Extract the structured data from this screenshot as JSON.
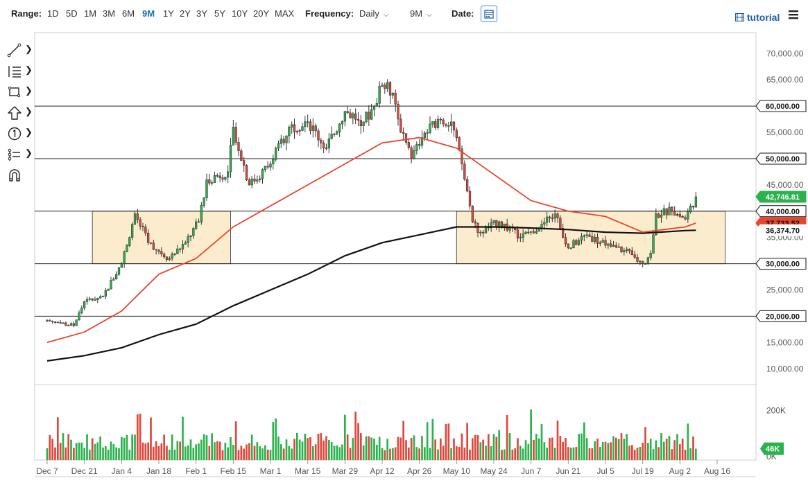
{
  "toolbar": {
    "range_label": "Range:",
    "ranges": [
      "1D",
      "5D",
      "1M",
      "3M",
      "6M",
      "9M",
      "1Y",
      "2Y",
      "3Y",
      "5Y",
      "10Y",
      "20Y",
      "MAX"
    ],
    "active_range": "9M",
    "frequency_label": "Frequency:",
    "frequency_value": "Daily",
    "period_value": "9M",
    "date_label": "Date:",
    "tutorial_label": "tutorial"
  },
  "drawing_tools": [
    {
      "icon": "trendline-icon"
    },
    {
      "icon": "fibonacci-icon"
    },
    {
      "icon": "rectangle-icon"
    },
    {
      "icon": "arrow-up-icon"
    },
    {
      "icon": "annotation-icon"
    },
    {
      "icon": "measure-icon"
    },
    {
      "icon": "magnet-icon"
    }
  ],
  "colors": {
    "up": "#2bb24c",
    "down": "#e0463a",
    "ma_fast": "#e8452c",
    "ma_slow": "#111111",
    "zone_fill": "#fbe9c6",
    "zone_border": "#555555",
    "accent": "#1a6fb5"
  },
  "chart_data": {
    "type": "candlestick",
    "y_axis": {
      "min": 7000,
      "max": 74000,
      "ticks": [
        "70,000.00",
        "65,000.00",
        "60,000.00",
        "55,000.00",
        "50,000.00",
        "45,000.00",
        "40,000.00",
        "35,000.00",
        "30,000.00",
        "25,000.00",
        "20,000.00",
        "15,000.00",
        "10,000.00"
      ],
      "tick_values": [
        70000,
        65000,
        60000,
        55000,
        50000,
        45000,
        40000,
        35000,
        30000,
        25000,
        20000,
        15000,
        10000
      ]
    },
    "x_axis": {
      "ticks": [
        "Dec 7",
        "Dec 21",
        "Jan 4",
        "Jan 18",
        "Feb 1",
        "Feb 15",
        "Mar 1",
        "Mar 15",
        "Mar 29",
        "Apr 12",
        "Apr 26",
        "May 10",
        "May 24",
        "Jun 7",
        "Jun 21",
        "Jul 5",
        "Jul 19",
        "Aug 2",
        "Aug 16"
      ],
      "tick_days": [
        0,
        14,
        28,
        42,
        56,
        70,
        84,
        98,
        112,
        126,
        140,
        154,
        168,
        182,
        196,
        210,
        224,
        238,
        252
      ]
    },
    "horizontal_lines": [
      60000,
      50000,
      40000,
      30000,
      20000
    ],
    "zones": [
      {
        "from_day": 17,
        "to_day": 69,
        "low": 30000,
        "high": 40000
      },
      {
        "from_day": 154,
        "to_day": 255,
        "low": 30000,
        "high": 40000
      }
    ],
    "price_labels": [
      {
        "text": "60,000.00",
        "value": 60000,
        "style": "line"
      },
      {
        "text": "50,000.00",
        "value": 50000,
        "style": "line"
      },
      {
        "text": "42,746.81",
        "value": 42746.81,
        "style": "up"
      },
      {
        "text": "40,000.00",
        "value": 40000,
        "style": "line"
      },
      {
        "text": "37,733.52",
        "value": 37733.52,
        "style": "ma_fast"
      },
      {
        "text": "36,374.70",
        "value": 36374.7,
        "style": "ma_slow"
      },
      {
        "text": "30,000.00",
        "value": 30000,
        "style": "line"
      },
      {
        "text": "20,000.00",
        "value": 20000,
        "style": "line"
      }
    ],
    "key_closes": [
      {
        "day": 0,
        "close": 19200
      },
      {
        "day": 10,
        "close": 18200
      },
      {
        "day": 14,
        "close": 22800
      },
      {
        "day": 21,
        "close": 23800
      },
      {
        "day": 28,
        "close": 30000
      },
      {
        "day": 33,
        "close": 39500
      },
      {
        "day": 38,
        "close": 34000
      },
      {
        "day": 46,
        "close": 31000
      },
      {
        "day": 52,
        "close": 34000
      },
      {
        "day": 57,
        "close": 38000
      },
      {
        "day": 60,
        "close": 46000
      },
      {
        "day": 68,
        "close": 47500
      },
      {
        "day": 70,
        "close": 56000
      },
      {
        "day": 76,
        "close": 45000
      },
      {
        "day": 84,
        "close": 49000
      },
      {
        "day": 91,
        "close": 56000
      },
      {
        "day": 98,
        "close": 57000
      },
      {
        "day": 105,
        "close": 52000
      },
      {
        "day": 112,
        "close": 59000
      },
      {
        "day": 119,
        "close": 57000
      },
      {
        "day": 123,
        "close": 60000
      },
      {
        "day": 126,
        "close": 64000
      },
      {
        "day": 130,
        "close": 62500
      },
      {
        "day": 133,
        "close": 55000
      },
      {
        "day": 137,
        "close": 50000
      },
      {
        "day": 141,
        "close": 54000
      },
      {
        "day": 147,
        "close": 57500
      },
      {
        "day": 152,
        "close": 57000
      },
      {
        "day": 156,
        "close": 49000
      },
      {
        "day": 160,
        "close": 38000
      },
      {
        "day": 163,
        "close": 36000
      },
      {
        "day": 170,
        "close": 38000
      },
      {
        "day": 178,
        "close": 35000
      },
      {
        "day": 186,
        "close": 37500
      },
      {
        "day": 191,
        "close": 39500
      },
      {
        "day": 196,
        "close": 33000
      },
      {
        "day": 203,
        "close": 35500
      },
      {
        "day": 210,
        "close": 33500
      },
      {
        "day": 217,
        "close": 32500
      },
      {
        "day": 224,
        "close": 30000
      },
      {
        "day": 227,
        "close": 32000
      },
      {
        "day": 229,
        "close": 39500
      },
      {
        "day": 235,
        "close": 40000
      },
      {
        "day": 240,
        "close": 38500
      },
      {
        "day": 244,
        "close": 42746.81
      }
    ],
    "ma_fast": {
      "name": "",
      "points": [
        [
          0,
          15000
        ],
        [
          14,
          17000
        ],
        [
          28,
          21000
        ],
        [
          42,
          28000
        ],
        [
          56,
          31000
        ],
        [
          70,
          37000
        ],
        [
          84,
          41000
        ],
        [
          98,
          45000
        ],
        [
          112,
          49000
        ],
        [
          126,
          53000
        ],
        [
          140,
          54000
        ],
        [
          154,
          52000
        ],
        [
          168,
          47000
        ],
        [
          182,
          42000
        ],
        [
          196,
          40000
        ],
        [
          210,
          39000
        ],
        [
          224,
          36000
        ],
        [
          232,
          36500
        ],
        [
          240,
          37000
        ],
        [
          244,
          37733.52
        ]
      ]
    },
    "ma_slow": {
      "name": "",
      "points": [
        [
          0,
          11500
        ],
        [
          14,
          12500
        ],
        [
          28,
          14000
        ],
        [
          42,
          16500
        ],
        [
          56,
          18500
        ],
        [
          70,
          22000
        ],
        [
          84,
          25000
        ],
        [
          98,
          28000
        ],
        [
          112,
          31500
        ],
        [
          126,
          34000
        ],
        [
          140,
          35500
        ],
        [
          154,
          37000
        ],
        [
          168,
          37000
        ],
        [
          182,
          36800
        ],
        [
          196,
          36500
        ],
        [
          210,
          36000
        ],
        [
          224,
          35800
        ],
        [
          240,
          36300
        ],
        [
          244,
          36374.7
        ]
      ]
    },
    "volume": {
      "ticks": [
        "200K",
        "0K"
      ],
      "tick_values": [
        200000,
        0
      ],
      "last_label": "46K",
      "max": 300000
    }
  }
}
